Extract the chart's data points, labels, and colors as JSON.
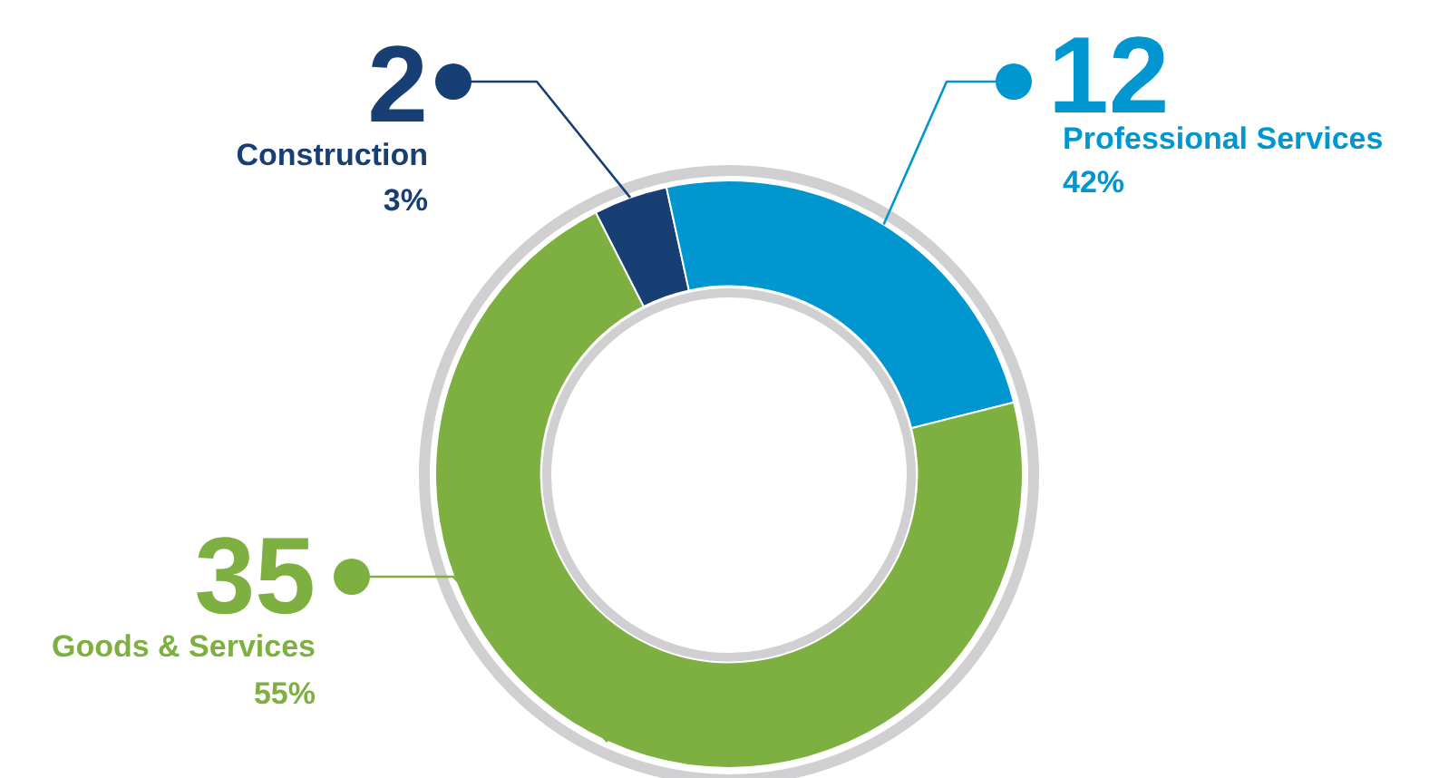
{
  "chart_data": {
    "type": "donut",
    "categories": [
      "Construction",
      "Professional Services",
      "Goods & Services"
    ],
    "values": [
      2,
      12,
      35
    ],
    "colors": [
      "#173f73",
      "#0096cf",
      "#7db041"
    ],
    "annotations": [
      "3%",
      "42%",
      "55%"
    ],
    "data_labels": true,
    "legend": false
  }
}
